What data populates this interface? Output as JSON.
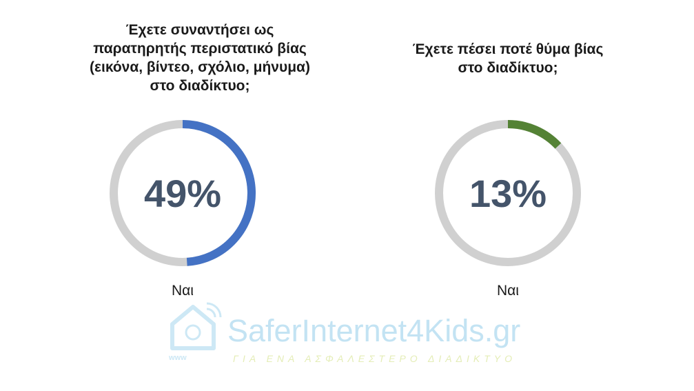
{
  "chart_data": [
    {
      "type": "donut",
      "title": "Έχετε συναντήσει ως\nπαρατηρητής περιστατικό βίας\n(εικόνα, βίντεο, σχόλιο, μήνυμα)\nστο διαδίκτυο;",
      "categories": [
        "Ναι"
      ],
      "values": [
        49
      ],
      "value_labels": [
        "49%"
      ],
      "color": "#4472c4",
      "track_color": "#d0d0d0"
    },
    {
      "type": "donut",
      "title": "Έχετε πέσει ποτέ θύμα βίας\nστο διαδίκτυο;",
      "categories": [
        "Ναι"
      ],
      "values": [
        13
      ],
      "value_labels": [
        "13%"
      ],
      "color": "#548235",
      "track_color": "#d0d0d0"
    }
  ],
  "watermark": {
    "brand": "SaferInternet4Kids.gr",
    "tagline": "ΓΙΑ ΕΝΑ ΑΣΦΑΛΕΣΤΕΡΟ ΔΙΑΔΙΚΤΥΟ",
    "www": "www"
  }
}
